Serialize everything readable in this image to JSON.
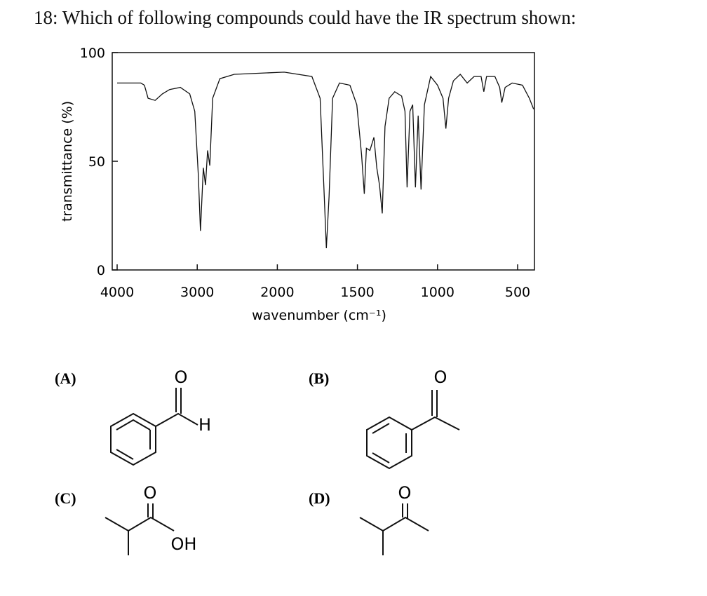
{
  "question": "18: Which of following compounds could have the IR spectrum shown:",
  "chart_data": {
    "type": "line",
    "x_label": "wavenumber (cm⁻¹)",
    "y_label": "transmittance (%)",
    "xlim": [
      4000,
      400
    ],
    "ylim": [
      0,
      100
    ],
    "xticks": [
      4000,
      3000,
      2000,
      1500,
      1000,
      500
    ],
    "yticks": [
      0,
      50,
      100
    ],
    "series": [
      {
        "color": "#111111",
        "x": [
          4000,
          3704,
          3659,
          3614,
          3525,
          3435,
          3345,
          3211,
          3094,
          3031,
          2987,
          2960,
          2924,
          2897,
          2870,
          2843,
          2807,
          2717,
          2538,
          1957,
          1784,
          1733,
          1707,
          1694,
          1677,
          1655,
          1612,
          1547,
          1504,
          1474,
          1457,
          1444,
          1422,
          1397,
          1379,
          1362,
          1345,
          1328,
          1302,
          1267,
          1224,
          1203,
          1190,
          1172,
          1155,
          1138,
          1121,
          1103,
          1082,
          1043,
          1000,
          966,
          948,
          931,
          901,
          858,
          815,
          772,
          728,
          711,
          694,
          642,
          612,
          599,
          578,
          534,
          470,
          427,
          400
        ],
        "values": [
          86,
          86,
          85,
          79,
          78,
          81,
          83,
          84,
          81,
          73,
          44,
          18,
          47,
          39,
          55,
          48,
          79,
          88,
          90,
          91,
          89,
          79,
          34,
          10,
          34,
          79,
          86,
          85,
          76,
          53,
          35,
          56,
          55,
          61,
          47,
          39,
          26,
          66,
          79,
          82,
          80,
          73,
          38,
          73,
          76,
          38,
          71,
          37,
          76,
          89,
          85,
          79,
          65,
          79,
          87,
          90,
          86,
          89,
          89,
          82,
          89,
          89,
          84,
          77,
          84,
          86,
          85,
          79,
          74
        ]
      }
    ]
  },
  "options": [
    {
      "label": "(A)",
      "atoms": [
        "O",
        "H"
      ]
    },
    {
      "label": "(B)",
      "atoms": [
        "O"
      ]
    },
    {
      "label": "(C)",
      "atoms": [
        "O",
        "OH"
      ]
    },
    {
      "label": "(D)",
      "atoms": [
        "O"
      ]
    }
  ]
}
